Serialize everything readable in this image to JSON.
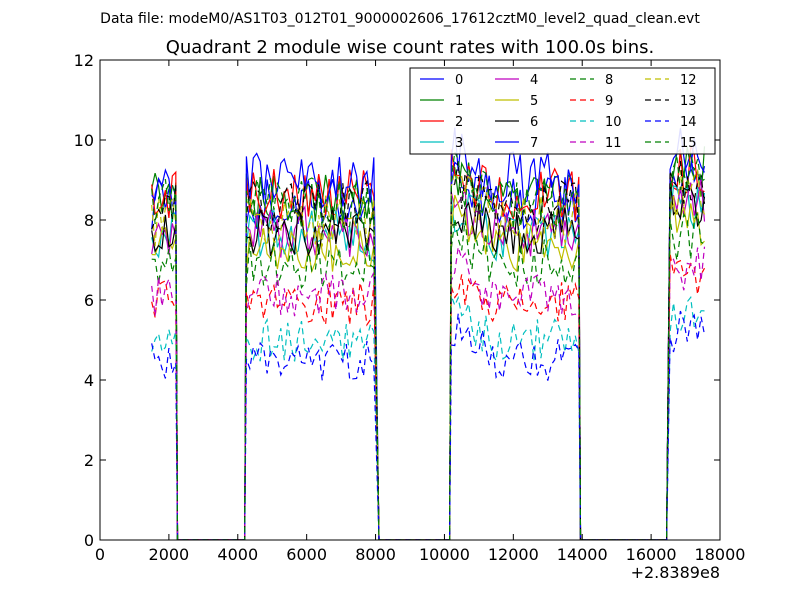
{
  "figure": {
    "suptitle": "Data file: modeM0/AS1T03_012T01_9000002606_17612cztM0_level2_quad_clean.evt"
  },
  "chart_data": {
    "type": "line",
    "title": "Quadrant 2 module wise count rates with 100.0s bins.",
    "xlabel": "",
    "ylabel": "",
    "xlim": [
      0,
      18000
    ],
    "ylim": [
      0,
      12
    ],
    "x_offset_label": "+2.8389e8",
    "xticks": [
      0,
      2000,
      4000,
      6000,
      8000,
      10000,
      12000,
      14000,
      16000,
      18000
    ],
    "xtick_labels": [
      "0",
      "2000",
      "4000",
      "6000",
      "8000",
      "10000",
      "12000",
      "14000",
      "16000",
      "18000"
    ],
    "yticks": [
      0,
      2,
      4,
      6,
      8,
      10,
      12
    ],
    "ytick_labels": [
      "0",
      "2",
      "4",
      "6",
      "8",
      "10",
      "12"
    ],
    "grid": false,
    "legend_location": "top-right",
    "legend_columns": 4,
    "segments": [
      {
        "start": 1500,
        "end": 2200,
        "fall": 2250
      },
      {
        "start": 4250,
        "end": 8000,
        "rise": 4200,
        "fall": 8100
      },
      {
        "start": 10200,
        "end": 13900,
        "rise": 10150,
        "fall": 13950
      },
      {
        "start": 16550,
        "end": 17600,
        "rise": 16450
      }
    ],
    "series": [
      {
        "name": "0",
        "color": "#0000ff",
        "style": "solid",
        "mean_rate": 8.4
      },
      {
        "name": "1",
        "color": "#008000",
        "style": "solid",
        "mean_rate": 8.5
      },
      {
        "name": "2",
        "color": "#ff0000",
        "style": "solid",
        "mean_rate": 8.6
      },
      {
        "name": "3",
        "color": "#00bfbf",
        "style": "solid",
        "mean_rate": 7.6
      },
      {
        "name": "4",
        "color": "#bf00bf",
        "style": "solid",
        "mean_rate": 7.7
      },
      {
        "name": "5",
        "color": "#bfbf00",
        "style": "solid",
        "mean_rate": 7.3
      },
      {
        "name": "6",
        "color": "#000000",
        "style": "solid",
        "mean_rate": 7.7
      },
      {
        "name": "7",
        "color": "#0000ff",
        "style": "solid",
        "mean_rate": 9.0
      },
      {
        "name": "8",
        "color": "#008000",
        "style": "dashed",
        "mean_rate": 6.9
      },
      {
        "name": "9",
        "color": "#ff0000",
        "style": "dashed",
        "mean_rate": 5.9
      },
      {
        "name": "10",
        "color": "#00bfbf",
        "style": "dashed",
        "mean_rate": 5.0
      },
      {
        "name": "11",
        "color": "#bf00bf",
        "style": "dashed",
        "mean_rate": 6.1
      },
      {
        "name": "12",
        "color": "#bfbf00",
        "style": "dashed",
        "mean_rate": 8.0
      },
      {
        "name": "13",
        "color": "#000000",
        "style": "dashed",
        "mean_rate": 8.3
      },
      {
        "name": "14",
        "color": "#0000ff",
        "style": "dashed",
        "mean_rate": 4.5
      },
      {
        "name": "15",
        "color": "#008000",
        "style": "dashed",
        "mean_rate": 8.4
      }
    ]
  }
}
